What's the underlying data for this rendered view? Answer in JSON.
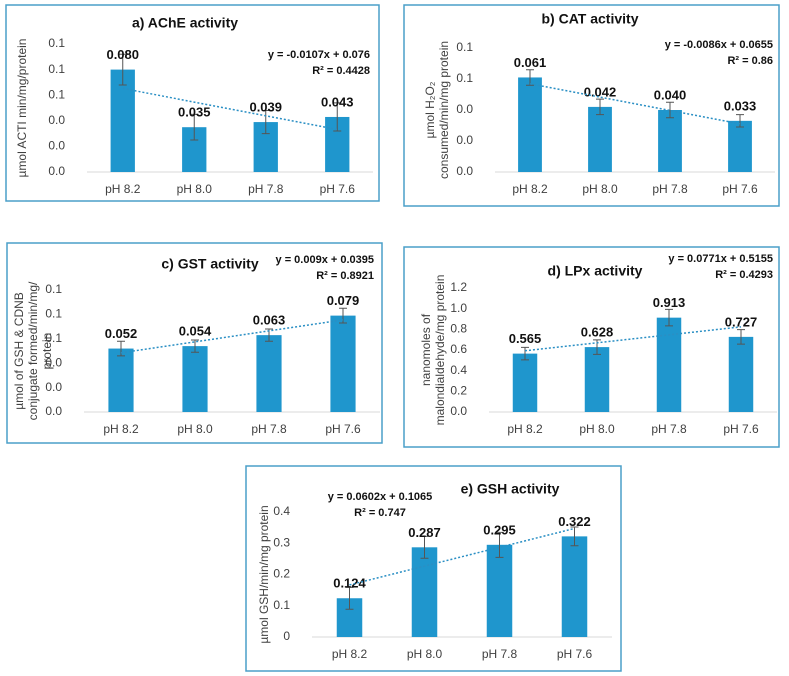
{
  "chart_data": [
    {
      "type": "bar",
      "title": "a) AChE activity",
      "ylabel": [
        "µmol ACTI min/mg/protein"
      ],
      "categories": [
        "pH 8.2",
        "pH 8.0",
        "pH 7.8",
        "pH 7.6"
      ],
      "values": [
        0.08,
        0.035,
        0.039,
        0.043
      ],
      "value_labels": [
        "0.080",
        "0.035",
        "0.039",
        "0.043"
      ],
      "errors": [
        0.012,
        0.01,
        0.009,
        0.011
      ],
      "color": "#1f96cd",
      "annotations": [
        "y = -0.0107x + 0.076",
        "R² = 0.4428"
      ],
      "ylim": [
        0,
        0.1
      ],
      "yticks": [
        {
          "value": 0,
          "label": "0.0"
        },
        {
          "value": 0.02,
          "label": "0.0"
        },
        {
          "value": 0.04,
          "label": "0.0"
        },
        {
          "value": 0.06,
          "label": "0.1"
        },
        {
          "value": 0.08,
          "label": "0.1"
        },
        0.1
      ]
    },
    {
      "type": "bar",
      "title": "b) CAT activity",
      "ylabel": [
        "µmol H₂O₂",
        "consumed/min/mg protein"
      ],
      "categories": [
        "pH 8.2",
        "pH 8.0",
        "pH 7.8",
        "pH 7.6"
      ],
      "values": [
        0.061,
        0.042,
        0.04,
        0.033
      ],
      "value_labels": [
        "0.061",
        "0.042",
        "0.040",
        "0.033"
      ],
      "errors": [
        0.005,
        0.005,
        0.005,
        0.004
      ],
      "color": "#1f96cd",
      "annotations": [
        "y = -0.0086x + 0.0655",
        "R² = 0.86"
      ],
      "ylim": [
        0,
        0.08
      ],
      "yticks": [
        {
          "value": 0,
          "label": "0.0"
        },
        {
          "value": 0.02,
          "label": "0.0"
        },
        {
          "value": 0.04,
          "label": "0.0"
        },
        {
          "value": 0.06,
          "label": "0.1"
        },
        {
          "value": 0.08,
          "label": "0.1"
        }
      ]
    },
    {
      "type": "bar",
      "title": "c) GST activity",
      "ylabel": [
        "µmol of GSH & CDNB",
        "conjugate formed/min/mg/",
        "protein"
      ],
      "categories": [
        "pH 8.2",
        "pH 8.0",
        "pH 7.8",
        "pH 7.6"
      ],
      "values": [
        0.052,
        0.054,
        0.063,
        0.079
      ],
      "value_labels": [
        "0.052",
        "0.054",
        "0.063",
        "0.079"
      ],
      "errors": [
        0.006,
        0.005,
        0.005,
        0.006
      ],
      "color": "#1f96cd",
      "annotations": [
        "y = 0.009x + 0.0395",
        "R² = 0.8921"
      ],
      "ylim": [
        0,
        0.1
      ],
      "yticks": [
        {
          "value": 0,
          "label": "0.0"
        },
        {
          "value": 0.02,
          "label": "0.0"
        },
        {
          "value": 0.04,
          "label": "0.0"
        },
        {
          "value": 0.06,
          "label": "0.1"
        },
        {
          "value": 0.08,
          "label": "0.1"
        },
        0.1
      ]
    },
    {
      "type": "bar",
      "title": "d) LPx activity",
      "ylabel": [
        "nanomoles of",
        "malondialdehyde/mg protein"
      ],
      "categories": [
        "pH 8.2",
        "pH 8.0",
        "pH 7.8",
        "pH 7.6"
      ],
      "values": [
        0.565,
        0.628,
        0.913,
        0.727
      ],
      "errors": [
        0.06,
        0.07,
        0.08,
        0.07
      ],
      "color": "#1f96cd",
      "annotations": [
        "y = 0.0771x + 0.5155",
        "R² = 0.4293"
      ],
      "ylim": [
        0,
        1.2
      ],
      "yticks": [
        {
          "value": 0,
          "label": "0.0"
        },
        0.2,
        0.4,
        0.6,
        0.8,
        {
          "value": 1,
          "label": "1.0"
        },
        1.2
      ]
    },
    {
      "type": "bar",
      "title": "e) GSH activity",
      "ylabel": [
        "µmol GSH/min/mg protein"
      ],
      "categories": [
        "pH 8.2",
        "pH 8.0",
        "pH 7.8",
        "pH 7.6"
      ],
      "values": [
        0.124,
        0.287,
        0.295,
        0.322
      ],
      "errors": [
        0.035,
        0.035,
        0.04,
        0.03
      ],
      "color": "#1f96cd",
      "annotations": [
        "y = 0.0602x + 0.1065",
        "R² = 0.747"
      ],
      "ylim": [
        0,
        0.4
      ],
      "yticks": [
        0,
        0.1,
        0.2,
        0.3,
        0.4
      ]
    }
  ]
}
